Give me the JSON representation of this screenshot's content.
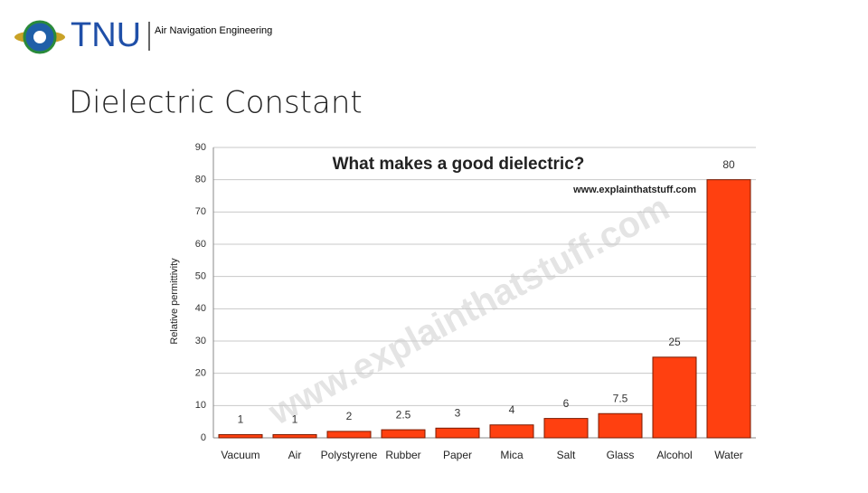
{
  "header": {
    "logo_text": "TNU",
    "department": "Air Navigation Engineering"
  },
  "slide_title": "Dielectric Constant",
  "chart_data": {
    "type": "bar",
    "title": "What makes a good dielectric?",
    "source": "www.explainthatstuff.com",
    "y_label": "Relative permittivity",
    "categories": [
      "Vacuum",
      "Air",
      "Polystyrene",
      "Rubber",
      "Paper",
      "Mica",
      "Salt",
      "Glass",
      "Alcohol",
      "Water"
    ],
    "values": [
      1,
      1,
      2,
      2.5,
      3,
      4,
      6,
      7.5,
      25,
      80
    ],
    "color": "#ff4010",
    "ylim": [
      0,
      90
    ],
    "yticks": [
      0,
      10,
      20,
      30,
      40,
      50,
      60,
      70,
      80,
      90
    ],
    "grid": true
  }
}
